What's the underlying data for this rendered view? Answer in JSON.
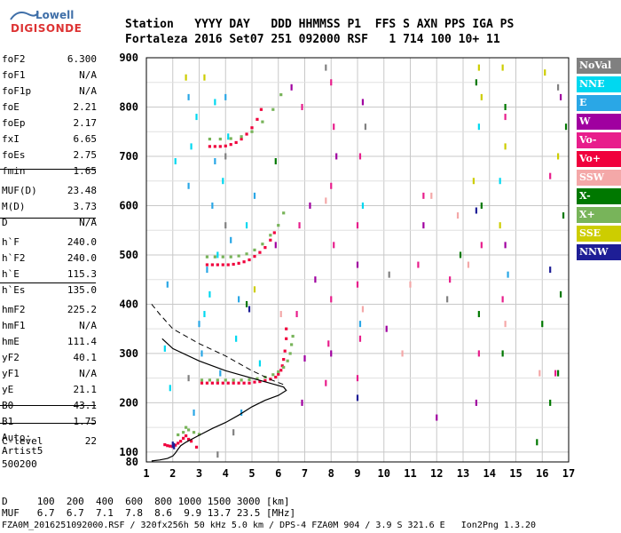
{
  "logo": {
    "brand_top": "Lowell",
    "brand_main": "DIGISONDE"
  },
  "header": {
    "row1": "Station   YYYY DAY   DDD HHMMSS P1  FFS S AXN PPS IGA PS",
    "row2": "Fortaleza 2016 Set07 251 092000 RSF   1 714 100 10+ 11"
  },
  "params": [
    {
      "label": "foF2",
      "value": "6.300"
    },
    {
      "label": "foF1",
      "value": "N/A"
    },
    {
      "label": "foF1p",
      "value": "N/A"
    },
    {
      "label": "foE",
      "value": "2.21"
    },
    {
      "label": "foEp",
      "value": "2.17"
    },
    {
      "label": "fxI",
      "value": "6.65"
    },
    {
      "label": "foEs",
      "value": "2.75"
    },
    {
      "label": "fmin",
      "value": "1.65"
    },
    {
      "label": "MUF(D)",
      "value": "23.48"
    },
    {
      "label": "M(D)",
      "value": "3.73"
    },
    {
      "label": "D",
      "value": "N/A"
    },
    {
      "label": "h`F",
      "value": "240.0"
    },
    {
      "label": "h`F2",
      "value": "240.0"
    },
    {
      "label": "h`E",
      "value": "115.3"
    },
    {
      "label": "h`Es",
      "value": "135.0"
    },
    {
      "label": "hmF2",
      "value": "225.2"
    },
    {
      "label": "hmF1",
      "value": "N/A"
    },
    {
      "label": "hmE",
      "value": "111.4"
    },
    {
      "label": "yF2",
      "value": "40.1"
    },
    {
      "label": "yF1",
      "value": "N/A"
    },
    {
      "label": "yE",
      "value": "21.1"
    },
    {
      "label": "B0",
      "value": "43.1"
    },
    {
      "label": "B1",
      "value": "1.75"
    },
    {
      "label": "C-level",
      "value": "22"
    }
  ],
  "auto": {
    "line1": "Auto:",
    "line2": "Artist5",
    "line3": "500200"
  },
  "legend": [
    {
      "label": "NoVal",
      "color": "#808080"
    },
    {
      "label": "NNE",
      "color": "#00d8f0"
    },
    {
      "label": "E",
      "color": "#2aa7e6"
    },
    {
      "label": "W",
      "color": "#a000a0"
    },
    {
      "label": "Vo-",
      "color": "#e81e8c"
    },
    {
      "label": "Vo+",
      "color": "#f0003c"
    },
    {
      "label": "SSW",
      "color": "#f4a8a8"
    },
    {
      "label": "X-",
      "color": "#007800"
    },
    {
      "label": "X+",
      "color": "#78b45a"
    },
    {
      "label": "SSE",
      "color": "#cdcd00"
    },
    {
      "label": "NNW",
      "color": "#1e1e96"
    }
  ],
  "bottom": {
    "row1": "D     100  200  400  600  800 1000 1500 3000 [km]",
    "row2": "MUF   6.7  6.7  7.1  7.8  8.6  9.9 13.7 23.5 [MHz]",
    "row3": "FZA0M_2016251092000.RSF / 320fx256h 50 kHz 5.0 km / DPS-4 FZA0M 904 / 3.9 S 321.6 E   Ion2Png 1.3.20"
  },
  "chart_data": {
    "type": "scatter",
    "xlim": [
      1,
      17
    ],
    "ylim": [
      80,
      900
    ],
    "xticks": [
      "1",
      "2",
      "3",
      "4",
      "5",
      "6",
      "7",
      "8",
      "9",
      "10",
      "11",
      "12",
      "13",
      "14",
      "15",
      "16",
      "17"
    ],
    "yticks": [
      "80",
      "100",
      "200",
      "300",
      "400",
      "500",
      "600",
      "700",
      "800",
      "900"
    ],
    "grid": true,
    "profile": [
      [
        1.2,
        82
      ],
      [
        1.5,
        84
      ],
      [
        1.8,
        87
      ],
      [
        2.0,
        92
      ],
      [
        2.1,
        98
      ],
      [
        2.2,
        106
      ],
      [
        2.3,
        113
      ],
      [
        2.5,
        120
      ],
      [
        3.0,
        134
      ],
      [
        3.5,
        148
      ],
      [
        4.0,
        160
      ],
      [
        4.5,
        175
      ],
      [
        5.0,
        192
      ],
      [
        5.5,
        205
      ],
      [
        6.0,
        215
      ],
      [
        6.3,
        225
      ],
      [
        6.2,
        232
      ],
      [
        5.8,
        238
      ],
      [
        5.0,
        250
      ],
      [
        4.0,
        265
      ],
      [
        3.0,
        285
      ],
      [
        2.0,
        310
      ],
      [
        1.6,
        330
      ]
    ],
    "dashed": [
      [
        1.2,
        400
      ],
      [
        1.5,
        380
      ],
      [
        2.0,
        350
      ],
      [
        3.0,
        320
      ],
      [
        4.0,
        295
      ],
      [
        5.0,
        265
      ],
      [
        5.8,
        245
      ],
      [
        6.2,
        237
      ]
    ],
    "traces": [
      {
        "name": "Vo+",
        "color": "#f0003c",
        "points": [
          [
            1.7,
            115
          ],
          [
            1.8,
            113
          ],
          [
            1.9,
            112
          ],
          [
            2.0,
            111
          ],
          [
            2.1,
            114
          ],
          [
            2.2,
            118
          ],
          [
            2.3,
            122
          ],
          [
            2.4,
            128
          ],
          [
            2.5,
            133
          ],
          [
            2.6,
            126
          ],
          [
            2.7,
            122
          ],
          [
            2.9,
            110
          ],
          [
            3.1,
            240
          ],
          [
            3.3,
            240
          ],
          [
            3.5,
            240
          ],
          [
            3.7,
            240
          ],
          [
            3.9,
            240
          ],
          [
            4.1,
            240
          ],
          [
            4.3,
            240
          ],
          [
            4.5,
            240
          ],
          [
            4.7,
            240
          ],
          [
            4.9,
            240
          ],
          [
            5.1,
            242
          ],
          [
            5.3,
            243
          ],
          [
            5.5,
            245
          ],
          [
            5.7,
            248
          ],
          [
            5.9,
            252
          ],
          [
            6.0,
            258
          ],
          [
            6.1,
            266
          ],
          [
            6.15,
            275
          ],
          [
            6.2,
            288
          ],
          [
            6.25,
            305
          ],
          [
            6.3,
            330
          ],
          [
            6.3,
            350
          ],
          [
            3.3,
            480
          ],
          [
            3.5,
            480
          ],
          [
            3.7,
            480
          ],
          [
            3.9,
            480
          ],
          [
            4.1,
            480
          ],
          [
            4.3,
            481
          ],
          [
            4.5,
            483
          ],
          [
            4.7,
            486
          ],
          [
            4.9,
            490
          ],
          [
            5.1,
            497
          ],
          [
            5.3,
            505
          ],
          [
            5.5,
            515
          ],
          [
            5.7,
            530
          ],
          [
            5.85,
            545
          ],
          [
            3.4,
            720
          ],
          [
            3.6,
            720
          ],
          [
            3.8,
            720
          ],
          [
            4.0,
            721
          ],
          [
            4.2,
            724
          ],
          [
            4.4,
            728
          ],
          [
            4.6,
            735
          ],
          [
            4.8,
            745
          ],
          [
            5.0,
            758
          ],
          [
            5.2,
            775
          ],
          [
            5.35,
            795
          ]
        ]
      },
      {
        "name": "X+",
        "color": "#78b45a",
        "points": [
          [
            2.2,
            135
          ],
          [
            2.4,
            140
          ],
          [
            2.6,
            145
          ],
          [
            2.8,
            140
          ],
          [
            3.0,
            136
          ],
          [
            2.5,
            150
          ],
          [
            3.1,
            246
          ],
          [
            3.4,
            246
          ],
          [
            3.7,
            246
          ],
          [
            4.0,
            246
          ],
          [
            4.3,
            246
          ],
          [
            4.6,
            246
          ],
          [
            4.9,
            247
          ],
          [
            5.2,
            249
          ],
          [
            5.5,
            252
          ],
          [
            5.8,
            257
          ],
          [
            6.0,
            263
          ],
          [
            6.2,
            272
          ],
          [
            6.35,
            285
          ],
          [
            6.45,
            300
          ],
          [
            6.5,
            318
          ],
          [
            6.55,
            335
          ],
          [
            3.3,
            496
          ],
          [
            3.6,
            496
          ],
          [
            3.9,
            496
          ],
          [
            4.2,
            496
          ],
          [
            4.5,
            498
          ],
          [
            4.8,
            502
          ],
          [
            5.1,
            510
          ],
          [
            5.4,
            522
          ],
          [
            5.7,
            540
          ],
          [
            6.0,
            560
          ],
          [
            6.2,
            585
          ],
          [
            3.4,
            735
          ],
          [
            3.8,
            735
          ],
          [
            4.2,
            736
          ],
          [
            4.6,
            740
          ],
          [
            5.0,
            750
          ],
          [
            5.4,
            770
          ],
          [
            5.8,
            795
          ],
          [
            6.1,
            825
          ]
        ]
      },
      {
        "name": "Vo-",
        "color": "#e81e8c",
        "points": [
          [
            7.8,
            240
          ],
          [
            7.9,
            320
          ],
          [
            8.0,
            410
          ],
          [
            8.1,
            520
          ],
          [
            8.0,
            640
          ],
          [
            8.1,
            760
          ],
          [
            8.0,
            850
          ],
          [
            9.0,
            250
          ],
          [
            9.1,
            330
          ],
          [
            9.0,
            440
          ],
          [
            9.0,
            560
          ],
          [
            9.1,
            700
          ],
          [
            6.7,
            380
          ],
          [
            6.8,
            560
          ],
          [
            6.9,
            800
          ],
          [
            11.3,
            480
          ],
          [
            11.5,
            620
          ],
          [
            13.6,
            300
          ],
          [
            13.7,
            520
          ],
          [
            14.5,
            410
          ],
          [
            14.6,
            780
          ],
          [
            16.3,
            660
          ],
          [
            16.5,
            260
          ],
          [
            12.5,
            450
          ]
        ]
      },
      {
        "name": "W",
        "color": "#a000a0",
        "points": [
          [
            7.0,
            290
          ],
          [
            7.2,
            600
          ],
          [
            8.0,
            300
          ],
          [
            8.2,
            700
          ],
          [
            9.0,
            480
          ],
          [
            9.2,
            810
          ],
          [
            6.9,
            200
          ],
          [
            10.1,
            350
          ],
          [
            11.5,
            560
          ],
          [
            13.5,
            200
          ],
          [
            14.6,
            520
          ],
          [
            16.7,
            820
          ],
          [
            12.0,
            170
          ],
          [
            6.5,
            840
          ],
          [
            7.4,
            450
          ],
          [
            5.9,
            520
          ]
        ]
      },
      {
        "name": "E",
        "color": "#2aa7e6",
        "points": [
          [
            3.0,
            360
          ],
          [
            3.3,
            470
          ],
          [
            3.5,
            600
          ],
          [
            3.6,
            690
          ],
          [
            3.8,
            260
          ],
          [
            4.0,
            820
          ],
          [
            4.5,
            410
          ],
          [
            4.2,
            530
          ],
          [
            3.1,
            300
          ],
          [
            5.1,
            620
          ],
          [
            9.1,
            360
          ],
          [
            14.7,
            460
          ],
          [
            2.8,
            180
          ],
          [
            2.6,
            820
          ],
          [
            1.8,
            440
          ],
          [
            2.6,
            640
          ],
          [
            4.6,
            180
          ]
        ]
      },
      {
        "name": "NNE",
        "color": "#00d8f0",
        "points": [
          [
            3.2,
            380
          ],
          [
            3.4,
            420
          ],
          [
            3.7,
            500
          ],
          [
            3.9,
            650
          ],
          [
            4.1,
            740
          ],
          [
            4.4,
            330
          ],
          [
            2.7,
            720
          ],
          [
            2.9,
            780
          ],
          [
            3.6,
            810
          ],
          [
            4.8,
            560
          ],
          [
            5.3,
            280
          ],
          [
            1.7,
            310
          ],
          [
            1.9,
            230
          ],
          [
            2.1,
            690
          ],
          [
            9.2,
            600
          ],
          [
            14.4,
            650
          ],
          [
            13.6,
            760
          ]
        ]
      },
      {
        "name": "X-",
        "color": "#007800",
        "points": [
          [
            13.6,
            380
          ],
          [
            13.7,
            600
          ],
          [
            14.5,
            300
          ],
          [
            16.3,
            200
          ],
          [
            16.6,
            260
          ],
          [
            16.7,
            420
          ],
          [
            16.8,
            580
          ],
          [
            15.8,
            120
          ],
          [
            16.0,
            360
          ],
          [
            13.5,
            850
          ],
          [
            14.6,
            800
          ],
          [
            12.9,
            500
          ],
          [
            16.9,
            760
          ],
          [
            5.9,
            690
          ],
          [
            4.8,
            400
          ]
        ]
      },
      {
        "name": "SSE",
        "color": "#cdcd00",
        "points": [
          [
            13.6,
            880
          ],
          [
            14.5,
            880
          ],
          [
            14.6,
            720
          ],
          [
            13.7,
            820
          ],
          [
            16.1,
            870
          ],
          [
            16.6,
            700
          ],
          [
            2.5,
            860
          ],
          [
            3.2,
            860
          ],
          [
            5.1,
            430
          ],
          [
            13.4,
            650
          ],
          [
            14.4,
            560
          ]
        ]
      },
      {
        "name": "SSW",
        "color": "#f4a8a8",
        "points": [
          [
            7.8,
            610
          ],
          [
            9.2,
            390
          ],
          [
            11.0,
            440
          ],
          [
            12.8,
            580
          ],
          [
            14.6,
            360
          ],
          [
            15.9,
            260
          ],
          [
            6.1,
            380
          ],
          [
            10.7,
            300
          ],
          [
            11.8,
            620
          ],
          [
            13.2,
            480
          ]
        ]
      },
      {
        "name": "NNW",
        "color": "#1e1e96",
        "points": [
          [
            2.05,
            112
          ],
          [
            2.0,
            115
          ],
          [
            13.5,
            590
          ],
          [
            4.9,
            390
          ],
          [
            16.3,
            470
          ],
          [
            9.0,
            210
          ]
        ]
      },
      {
        "name": "NoVal",
        "color": "#808080",
        "points": [
          [
            3.7,
            95
          ],
          [
            4.0,
            560
          ],
          [
            4.3,
            140
          ],
          [
            4.0,
            700
          ],
          [
            7.8,
            880
          ],
          [
            12.4,
            410
          ],
          [
            16.6,
            840
          ],
          [
            9.3,
            760
          ],
          [
            2.6,
            250
          ],
          [
            10.2,
            460
          ]
        ]
      }
    ]
  }
}
